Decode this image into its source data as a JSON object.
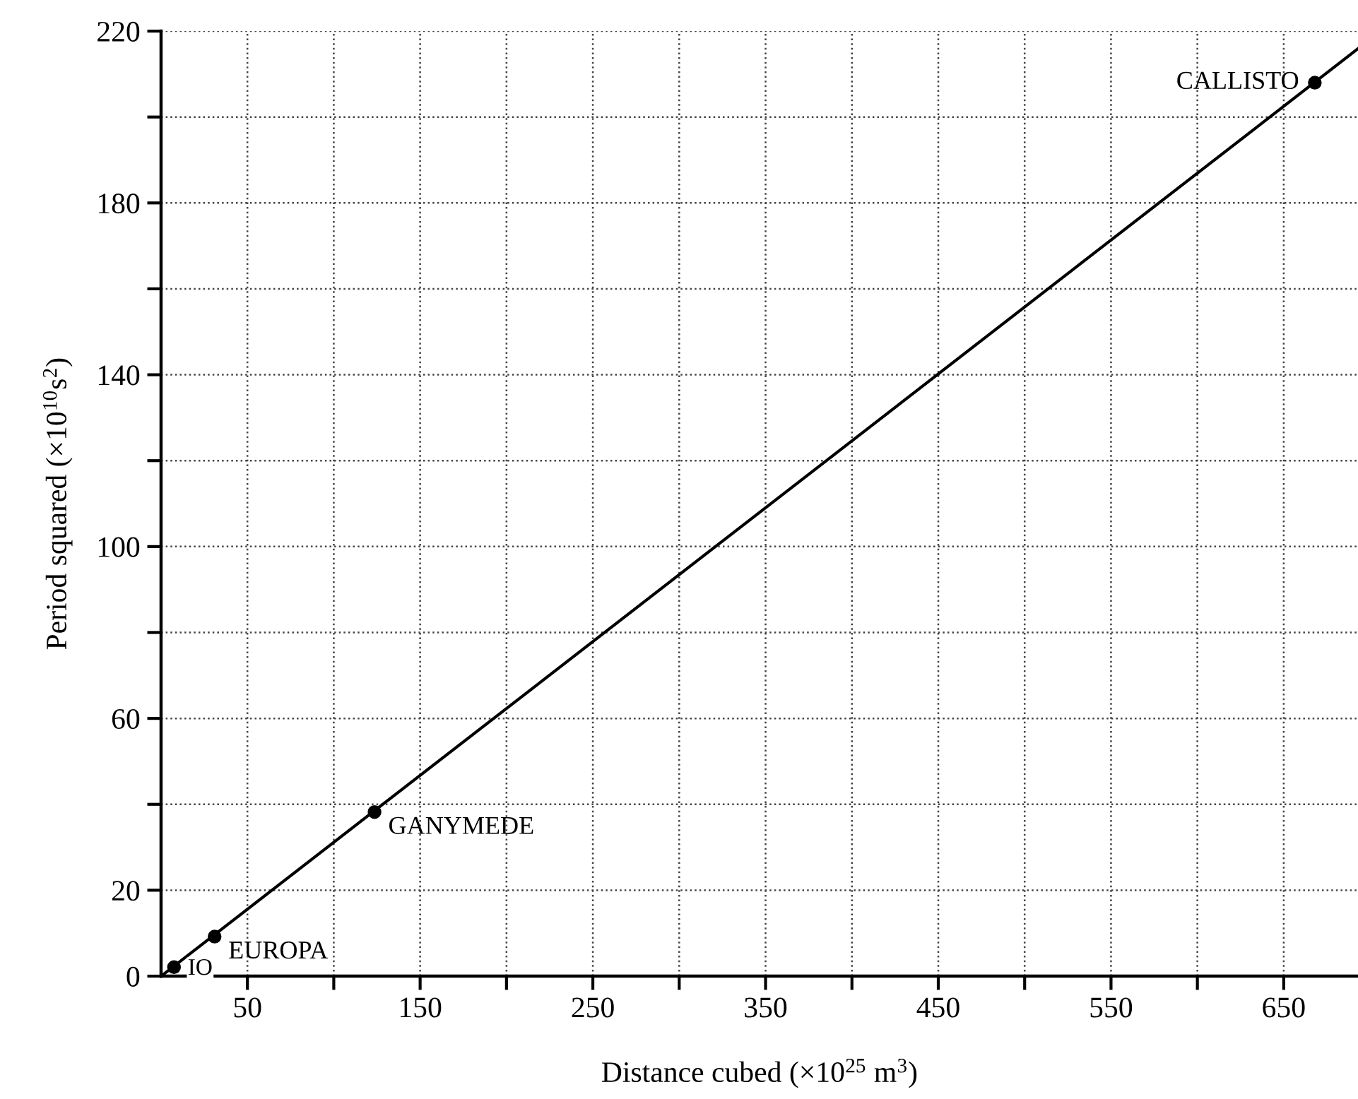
{
  "chart_data": {
    "type": "scatter",
    "xlabel": "Distance cubed (×10$^{25}$ m$^{3}$)",
    "ylabel": "Period squared (×10$^{10}$s$^{2}$)",
    "xlim": [
      0,
      693
    ],
    "ylim": [
      0,
      220
    ],
    "xticks": [
      {
        "value": 50,
        "label": "50"
      },
      {
        "value": 100,
        "label": null
      },
      {
        "value": 150,
        "label": "150"
      },
      {
        "value": 200,
        "label": null
      },
      {
        "value": 250,
        "label": "250"
      },
      {
        "value": 300,
        "label": null
      },
      {
        "value": 350,
        "label": "350"
      },
      {
        "value": 400,
        "label": null
      },
      {
        "value": 450,
        "label": "450"
      },
      {
        "value": 500,
        "label": null
      },
      {
        "value": 550,
        "label": "550"
      },
      {
        "value": 600,
        "label": null
      },
      {
        "value": 650,
        "label": "650"
      }
    ],
    "yticks": [
      0,
      20,
      {
        "value": 40,
        "label": null
      },
      60,
      {
        "value": 80,
        "label": null
      },
      100,
      {
        "value": 120,
        "label": null
      },
      140,
      {
        "value": 160,
        "label": null
      },
      180,
      {
        "value": 200,
        "label": null
      },
      220
    ],
    "grid": true,
    "series": [
      {
        "type": "line",
        "color": "#000000",
        "x": [
          0,
          693
        ],
        "values": [
          0,
          215.9
        ],
        "marker": "none",
        "line_style": "solid"
      },
      {
        "color": "#000000",
        "x": [
          7.5,
          31,
          123.6,
          668
        ],
        "values": [
          2.1,
          9.2,
          38.2,
          208
        ],
        "marker": "circle"
      }
    ],
    "annotations": [
      {
        "text": "IO",
        "x": 7.5,
        "y": 2.1
      },
      {
        "text": "EUROPA",
        "x": 31,
        "y": 9.2
      },
      {
        "text": "GANYMEDE",
        "x": 123.6,
        "y": 38.2
      },
      {
        "text": "CALLISTO",
        "x": 668,
        "y": 208
      }
    ]
  }
}
